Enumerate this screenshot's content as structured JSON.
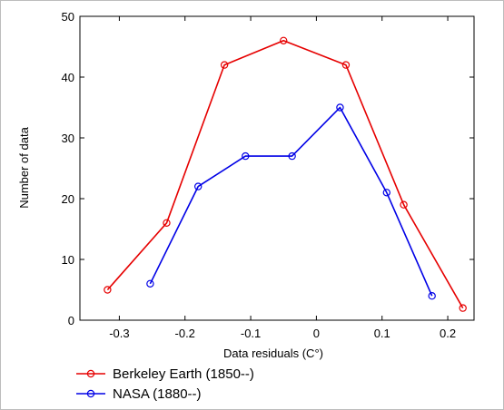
{
  "chart_data": {
    "type": "line",
    "title": "",
    "xlabel": "Data residuals (C°)",
    "ylabel": "Number of data",
    "xlim": [
      -0.36,
      0.24
    ],
    "ylim": [
      0,
      50
    ],
    "xticks": [
      -0.3,
      -0.2,
      -0.1,
      0,
      0.1,
      0.2
    ],
    "xtick_labels": [
      "-0.3",
      "-0.2",
      "-0.1",
      "0",
      "0.1",
      "0.2"
    ],
    "yticks": [
      0,
      10,
      20,
      30,
      40,
      50
    ],
    "ytick_labels": [
      "0",
      "10",
      "20",
      "30",
      "40",
      "50"
    ],
    "grid": false,
    "legend_position": "bottom-left",
    "series": [
      {
        "name": "Berkeley Earth  (1850--)",
        "color": "#e60000",
        "marker": "circle",
        "x": [
          -0.318,
          -0.228,
          -0.14,
          -0.05,
          0.045,
          0.133,
          0.223
        ],
        "y": [
          5,
          16,
          42,
          46,
          42,
          19,
          2
        ]
      },
      {
        "name": "NASA (1880--)",
        "color": "#0000e6",
        "marker": "circle",
        "x": [
          -0.253,
          -0.18,
          -0.108,
          -0.037,
          0.036,
          0.107,
          0.176
        ],
        "y": [
          6,
          22,
          27,
          27,
          35,
          21,
          4
        ]
      }
    ]
  }
}
